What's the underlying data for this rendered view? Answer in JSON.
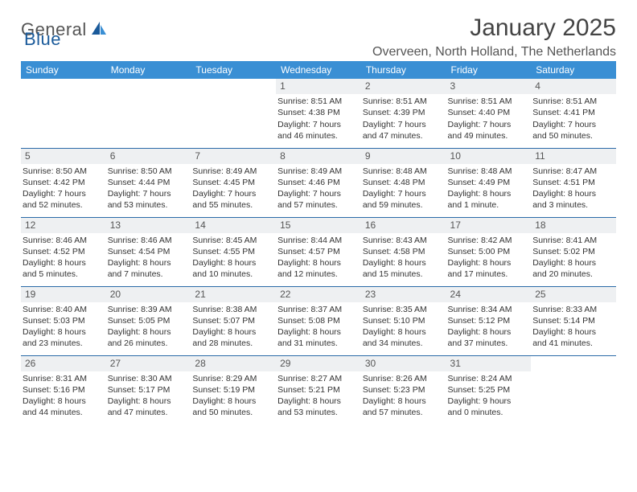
{
  "brand": {
    "name_part1": "General",
    "name_part2": "Blue",
    "color_gray": "#555555",
    "color_blue": "#1a5a9a"
  },
  "title": "January 2025",
  "location": "Overveen, North Holland, The Netherlands",
  "header_bg": "#3a8fd4",
  "header_fg": "#ffffff",
  "daynum_bg": "#eef0f2",
  "row_border": "#2a6aa8",
  "day_headers": [
    "Sunday",
    "Monday",
    "Tuesday",
    "Wednesday",
    "Thursday",
    "Friday",
    "Saturday"
  ],
  "weeks": [
    [
      null,
      null,
      null,
      {
        "n": "1",
        "sunrise": "Sunrise: 8:51 AM",
        "sunset": "Sunset: 4:38 PM",
        "dl1": "Daylight: 7 hours",
        "dl2": "and 46 minutes."
      },
      {
        "n": "2",
        "sunrise": "Sunrise: 8:51 AM",
        "sunset": "Sunset: 4:39 PM",
        "dl1": "Daylight: 7 hours",
        "dl2": "and 47 minutes."
      },
      {
        "n": "3",
        "sunrise": "Sunrise: 8:51 AM",
        "sunset": "Sunset: 4:40 PM",
        "dl1": "Daylight: 7 hours",
        "dl2": "and 49 minutes."
      },
      {
        "n": "4",
        "sunrise": "Sunrise: 8:51 AM",
        "sunset": "Sunset: 4:41 PM",
        "dl1": "Daylight: 7 hours",
        "dl2": "and 50 minutes."
      }
    ],
    [
      {
        "n": "5",
        "sunrise": "Sunrise: 8:50 AM",
        "sunset": "Sunset: 4:42 PM",
        "dl1": "Daylight: 7 hours",
        "dl2": "and 52 minutes."
      },
      {
        "n": "6",
        "sunrise": "Sunrise: 8:50 AM",
        "sunset": "Sunset: 4:44 PM",
        "dl1": "Daylight: 7 hours",
        "dl2": "and 53 minutes."
      },
      {
        "n": "7",
        "sunrise": "Sunrise: 8:49 AM",
        "sunset": "Sunset: 4:45 PM",
        "dl1": "Daylight: 7 hours",
        "dl2": "and 55 minutes."
      },
      {
        "n": "8",
        "sunrise": "Sunrise: 8:49 AM",
        "sunset": "Sunset: 4:46 PM",
        "dl1": "Daylight: 7 hours",
        "dl2": "and 57 minutes."
      },
      {
        "n": "9",
        "sunrise": "Sunrise: 8:48 AM",
        "sunset": "Sunset: 4:48 PM",
        "dl1": "Daylight: 7 hours",
        "dl2": "and 59 minutes."
      },
      {
        "n": "10",
        "sunrise": "Sunrise: 8:48 AM",
        "sunset": "Sunset: 4:49 PM",
        "dl1": "Daylight: 8 hours",
        "dl2": "and 1 minute."
      },
      {
        "n": "11",
        "sunrise": "Sunrise: 8:47 AM",
        "sunset": "Sunset: 4:51 PM",
        "dl1": "Daylight: 8 hours",
        "dl2": "and 3 minutes."
      }
    ],
    [
      {
        "n": "12",
        "sunrise": "Sunrise: 8:46 AM",
        "sunset": "Sunset: 4:52 PM",
        "dl1": "Daylight: 8 hours",
        "dl2": "and 5 minutes."
      },
      {
        "n": "13",
        "sunrise": "Sunrise: 8:46 AM",
        "sunset": "Sunset: 4:54 PM",
        "dl1": "Daylight: 8 hours",
        "dl2": "and 7 minutes."
      },
      {
        "n": "14",
        "sunrise": "Sunrise: 8:45 AM",
        "sunset": "Sunset: 4:55 PM",
        "dl1": "Daylight: 8 hours",
        "dl2": "and 10 minutes."
      },
      {
        "n": "15",
        "sunrise": "Sunrise: 8:44 AM",
        "sunset": "Sunset: 4:57 PM",
        "dl1": "Daylight: 8 hours",
        "dl2": "and 12 minutes."
      },
      {
        "n": "16",
        "sunrise": "Sunrise: 8:43 AM",
        "sunset": "Sunset: 4:58 PM",
        "dl1": "Daylight: 8 hours",
        "dl2": "and 15 minutes."
      },
      {
        "n": "17",
        "sunrise": "Sunrise: 8:42 AM",
        "sunset": "Sunset: 5:00 PM",
        "dl1": "Daylight: 8 hours",
        "dl2": "and 17 minutes."
      },
      {
        "n": "18",
        "sunrise": "Sunrise: 8:41 AM",
        "sunset": "Sunset: 5:02 PM",
        "dl1": "Daylight: 8 hours",
        "dl2": "and 20 minutes."
      }
    ],
    [
      {
        "n": "19",
        "sunrise": "Sunrise: 8:40 AM",
        "sunset": "Sunset: 5:03 PM",
        "dl1": "Daylight: 8 hours",
        "dl2": "and 23 minutes."
      },
      {
        "n": "20",
        "sunrise": "Sunrise: 8:39 AM",
        "sunset": "Sunset: 5:05 PM",
        "dl1": "Daylight: 8 hours",
        "dl2": "and 26 minutes."
      },
      {
        "n": "21",
        "sunrise": "Sunrise: 8:38 AM",
        "sunset": "Sunset: 5:07 PM",
        "dl1": "Daylight: 8 hours",
        "dl2": "and 28 minutes."
      },
      {
        "n": "22",
        "sunrise": "Sunrise: 8:37 AM",
        "sunset": "Sunset: 5:08 PM",
        "dl1": "Daylight: 8 hours",
        "dl2": "and 31 minutes."
      },
      {
        "n": "23",
        "sunrise": "Sunrise: 8:35 AM",
        "sunset": "Sunset: 5:10 PM",
        "dl1": "Daylight: 8 hours",
        "dl2": "and 34 minutes."
      },
      {
        "n": "24",
        "sunrise": "Sunrise: 8:34 AM",
        "sunset": "Sunset: 5:12 PM",
        "dl1": "Daylight: 8 hours",
        "dl2": "and 37 minutes."
      },
      {
        "n": "25",
        "sunrise": "Sunrise: 8:33 AM",
        "sunset": "Sunset: 5:14 PM",
        "dl1": "Daylight: 8 hours",
        "dl2": "and 41 minutes."
      }
    ],
    [
      {
        "n": "26",
        "sunrise": "Sunrise: 8:31 AM",
        "sunset": "Sunset: 5:16 PM",
        "dl1": "Daylight: 8 hours",
        "dl2": "and 44 minutes."
      },
      {
        "n": "27",
        "sunrise": "Sunrise: 8:30 AM",
        "sunset": "Sunset: 5:17 PM",
        "dl1": "Daylight: 8 hours",
        "dl2": "and 47 minutes."
      },
      {
        "n": "28",
        "sunrise": "Sunrise: 8:29 AM",
        "sunset": "Sunset: 5:19 PM",
        "dl1": "Daylight: 8 hours",
        "dl2": "and 50 minutes."
      },
      {
        "n": "29",
        "sunrise": "Sunrise: 8:27 AM",
        "sunset": "Sunset: 5:21 PM",
        "dl1": "Daylight: 8 hours",
        "dl2": "and 53 minutes."
      },
      {
        "n": "30",
        "sunrise": "Sunrise: 8:26 AM",
        "sunset": "Sunset: 5:23 PM",
        "dl1": "Daylight: 8 hours",
        "dl2": "and 57 minutes."
      },
      {
        "n": "31",
        "sunrise": "Sunrise: 8:24 AM",
        "sunset": "Sunset: 5:25 PM",
        "dl1": "Daylight: 9 hours",
        "dl2": "and 0 minutes."
      },
      null
    ]
  ]
}
